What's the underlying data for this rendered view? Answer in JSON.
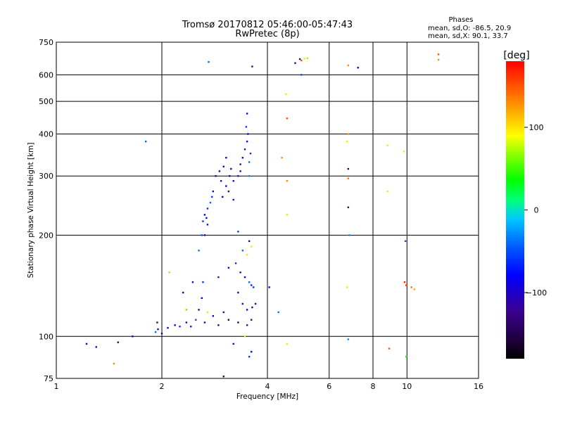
{
  "chart_data": {
    "type": "scatter",
    "title": "Tromsø 20170812 05:46:00-05:47:43",
    "subtitle": "RwPretec (8p)",
    "legend_title": "Phases",
    "legend_lines": [
      "mean, sd,O: -86.5, 20.9",
      "mean, sd,X:  90.1, 33.7"
    ],
    "xlabel": "Frequency [MHz]",
    "ylabel": "Stationary phase Virtual Height [km]",
    "x_scale": "log",
    "y_scale": "log",
    "xlim": [
      1,
      16
    ],
    "ylim": [
      75,
      750
    ],
    "x_ticks": [
      1,
      2,
      4,
      6,
      8,
      10,
      16
    ],
    "x_tick_labels": [
      "1",
      "2",
      "4",
      "6",
      "8",
      "10",
      "16"
    ],
    "y_ticks": [
      75,
      100,
      200,
      300,
      400,
      500,
      600,
      750
    ],
    "y_tick_labels": [
      "75",
      "100",
      "200",
      "300",
      "400",
      "500",
      "600",
      "750"
    ],
    "grid": true,
    "colorbar": {
      "label": "[deg]",
      "min": -180,
      "max": 180,
      "ticks": [
        100,
        0,
        -100
      ],
      "tick_labels": [
        "100",
        "0",
        "−100"
      ]
    },
    "points": [
      [
        1.22,
        95,
        -100
      ],
      [
        1.3,
        93,
        -110
      ],
      [
        1.5,
        96,
        -120
      ],
      [
        1.46,
        83,
        130
      ],
      [
        1.65,
        100,
        -110
      ],
      [
        1.8,
        380,
        -40
      ],
      [
        1.92,
        103,
        -40
      ],
      [
        1.95,
        105,
        -120
      ],
      [
        1.94,
        110,
        -130
      ],
      [
        2.0,
        102,
        -100
      ],
      [
        2.08,
        106,
        -90
      ],
      [
        2.1,
        155,
        110
      ],
      [
        2.18,
        108,
        -80
      ],
      [
        2.25,
        107,
        -60
      ],
      [
        2.35,
        110,
        -90
      ],
      [
        2.42,
        107,
        -70
      ],
      [
        2.5,
        112,
        -50
      ],
      [
        2.55,
        120,
        -100
      ],
      [
        2.6,
        130,
        -80
      ],
      [
        2.62,
        145,
        -60
      ],
      [
        2.55,
        180,
        -40
      ],
      [
        2.6,
        200,
        -50
      ],
      [
        2.62,
        220,
        -60
      ],
      [
        2.65,
        230,
        -80
      ],
      [
        2.7,
        240,
        -70
      ],
      [
        2.75,
        250,
        -40
      ],
      [
        2.78,
        260,
        -60
      ],
      [
        2.8,
        270,
        -100
      ],
      [
        2.7,
        215,
        -120
      ],
      [
        2.68,
        225,
        -90
      ],
      [
        2.72,
        655,
        -40
      ],
      [
        2.85,
        300,
        -110
      ],
      [
        2.92,
        310,
        -120
      ],
      [
        2.95,
        290,
        -100
      ],
      [
        3.0,
        320,
        -130
      ],
      [
        3.05,
        280,
        -90
      ],
      [
        3.1,
        270,
        -110
      ],
      [
        3.12,
        300,
        -120
      ],
      [
        3.15,
        315,
        -100
      ],
      [
        3.2,
        290,
        -90
      ],
      [
        2.98,
        260,
        -80
      ],
      [
        3.3,
        300,
        -70
      ],
      [
        3.35,
        310,
        -100
      ],
      [
        3.4,
        340,
        -90
      ],
      [
        3.45,
        360,
        -110
      ],
      [
        3.5,
        380,
        -80
      ],
      [
        3.52,
        400,
        -100
      ],
      [
        3.48,
        420,
        -60
      ],
      [
        3.5,
        460,
        -100
      ],
      [
        3.55,
        330,
        -40
      ],
      [
        3.58,
        350,
        -60
      ],
      [
        3.55,
        300,
        -30
      ],
      [
        3.62,
        635,
        -110
      ],
      [
        3.3,
        205,
        -60
      ],
      [
        3.55,
        192,
        -130
      ],
      [
        3.6,
        185,
        80
      ],
      [
        3.4,
        180,
        -40
      ],
      [
        3.5,
        175,
        100
      ],
      [
        3.45,
        150,
        -80
      ],
      [
        3.55,
        145,
        -40
      ],
      [
        3.6,
        142,
        -70
      ],
      [
        3.65,
        140,
        -60
      ],
      [
        3.3,
        135,
        -90
      ],
      [
        3.4,
        125,
        -120
      ],
      [
        3.5,
        120,
        -110
      ],
      [
        3.62,
        122,
        -130
      ],
      [
        3.7,
        125,
        -100
      ],
      [
        3.6,
        112,
        -110
      ],
      [
        3.5,
        108,
        -120
      ],
      [
        3.3,
        110,
        -150
      ],
      [
        3.1,
        112,
        -140
      ],
      [
        3.0,
        118,
        -120
      ],
      [
        2.9,
        108,
        -110
      ],
      [
        2.8,
        115,
        -100
      ],
      [
        2.7,
        118,
        100
      ],
      [
        3.2,
        95,
        -100
      ],
      [
        3.45,
        100,
        100
      ],
      [
        3.6,
        90,
        -80
      ],
      [
        3.55,
        87,
        -60
      ],
      [
        3.0,
        76,
        -150
      ],
      [
        4.05,
        140,
        -80
      ],
      [
        4.3,
        118,
        -40
      ],
      [
        4.4,
        340,
        130
      ],
      [
        4.55,
        445,
        150
      ],
      [
        4.52,
        525,
        100
      ],
      [
        4.55,
        290,
        130
      ],
      [
        4.55,
        230,
        80
      ],
      [
        4.55,
        95,
        100
      ],
      [
        4.8,
        650,
        -130
      ],
      [
        4.95,
        668,
        -130
      ],
      [
        5.0,
        662,
        150
      ],
      [
        5.1,
        670,
        80
      ],
      [
        5.2,
        672,
        110
      ],
      [
        5.0,
        600,
        -50
      ],
      [
        6.8,
        640,
        130
      ],
      [
        6.8,
        400,
        130
      ],
      [
        6.75,
        380,
        100
      ],
      [
        6.8,
        315,
        -140
      ],
      [
        6.8,
        295,
        140
      ],
      [
        6.8,
        242,
        -120
      ],
      [
        6.85,
        200,
        -30
      ],
      [
        6.75,
        140,
        100
      ],
      [
        6.8,
        98,
        -30
      ],
      [
        7.25,
        630,
        -80
      ],
      [
        8.8,
        370,
        100
      ],
      [
        8.8,
        270,
        80
      ],
      [
        8.9,
        92,
        150
      ],
      [
        9.8,
        355,
        80
      ],
      [
        9.9,
        192,
        -50
      ],
      [
        9.85,
        145,
        170
      ],
      [
        9.95,
        142,
        160
      ],
      [
        10.3,
        140,
        140
      ],
      [
        10.5,
        138,
        120
      ],
      [
        9.95,
        87,
        40
      ],
      [
        12.3,
        690,
        150
      ],
      [
        12.3,
        665,
        130
      ],
      [
        2.65,
        200,
        -130
      ],
      [
        3.2,
        255,
        -110
      ],
      [
        3.05,
        340,
        -100
      ],
      [
        3.35,
        325,
        -130
      ],
      [
        2.9,
        150,
        -70
      ],
      [
        3.1,
        160,
        -90
      ],
      [
        3.25,
        165,
        -60
      ],
      [
        3.35,
        155,
        -120
      ],
      [
        2.45,
        145,
        -100
      ],
      [
        2.35,
        120,
        120
      ],
      [
        2.3,
        135,
        -80
      ],
      [
        2.65,
        110,
        -130
      ]
    ]
  }
}
